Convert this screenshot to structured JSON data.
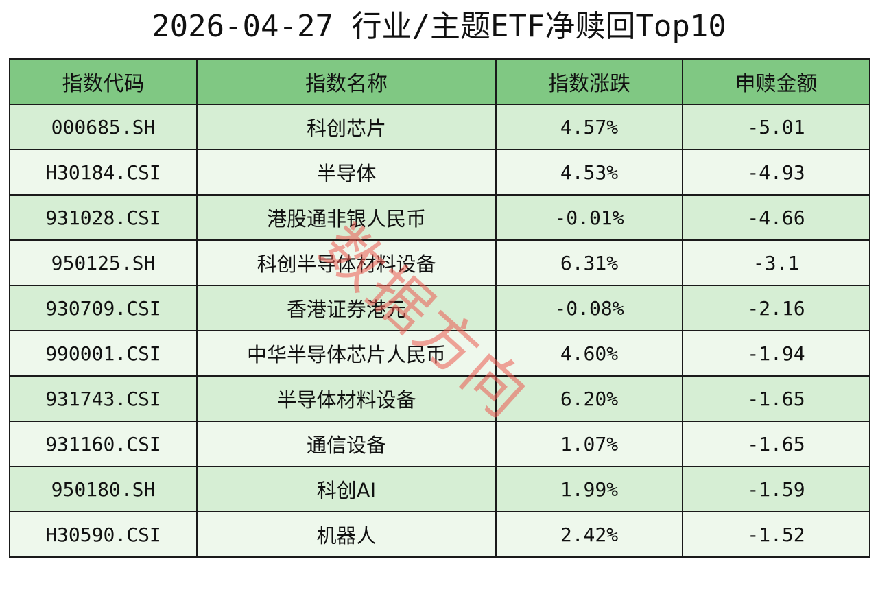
{
  "title": "2026-04-27 行业/主题ETF净赎回Top10",
  "watermark": "数据方向",
  "chart_data": {
    "type": "table",
    "title": "2026-04-27 行业/主题ETF净赎回Top10",
    "columns": [
      "指数代码",
      "指数名称",
      "指数涨跌",
      "申赎金额"
    ],
    "rows": [
      {
        "code": "000685.SH",
        "name": "科创芯片",
        "change": "4.57%",
        "amount": "-5.01"
      },
      {
        "code": "H30184.CSI",
        "name": "半导体",
        "change": "4.53%",
        "amount": "-4.93"
      },
      {
        "code": "931028.CSI",
        "name": "港股通非银人民币",
        "change": "-0.01%",
        "amount": "-4.66"
      },
      {
        "code": "950125.SH",
        "name": "科创半导体材料设备",
        "change": "6.31%",
        "amount": "-3.1"
      },
      {
        "code": "930709.CSI",
        "name": "香港证券港元",
        "change": "-0.08%",
        "amount": "-2.16"
      },
      {
        "code": "990001.CSI",
        "name": "中华半导体芯片人民币",
        "change": "4.60%",
        "amount": "-1.94"
      },
      {
        "code": "931743.CSI",
        "name": "半导体材料设备",
        "change": "6.20%",
        "amount": "-1.65"
      },
      {
        "code": "931160.CSI",
        "name": "通信设备",
        "change": "1.07%",
        "amount": "-1.65"
      },
      {
        "code": "950180.SH",
        "name": "科创AI",
        "change": "1.99%",
        "amount": "-1.59"
      },
      {
        "code": "H30590.CSI",
        "name": "机器人",
        "change": "2.42%",
        "amount": "-1.52"
      }
    ]
  },
  "colors": {
    "header_bg": "#80c883",
    "row_odd_bg": "#d6eed4",
    "row_even_bg": "#eef8ec",
    "border": "#1a1a1a",
    "watermark": "#ec5a50"
  }
}
